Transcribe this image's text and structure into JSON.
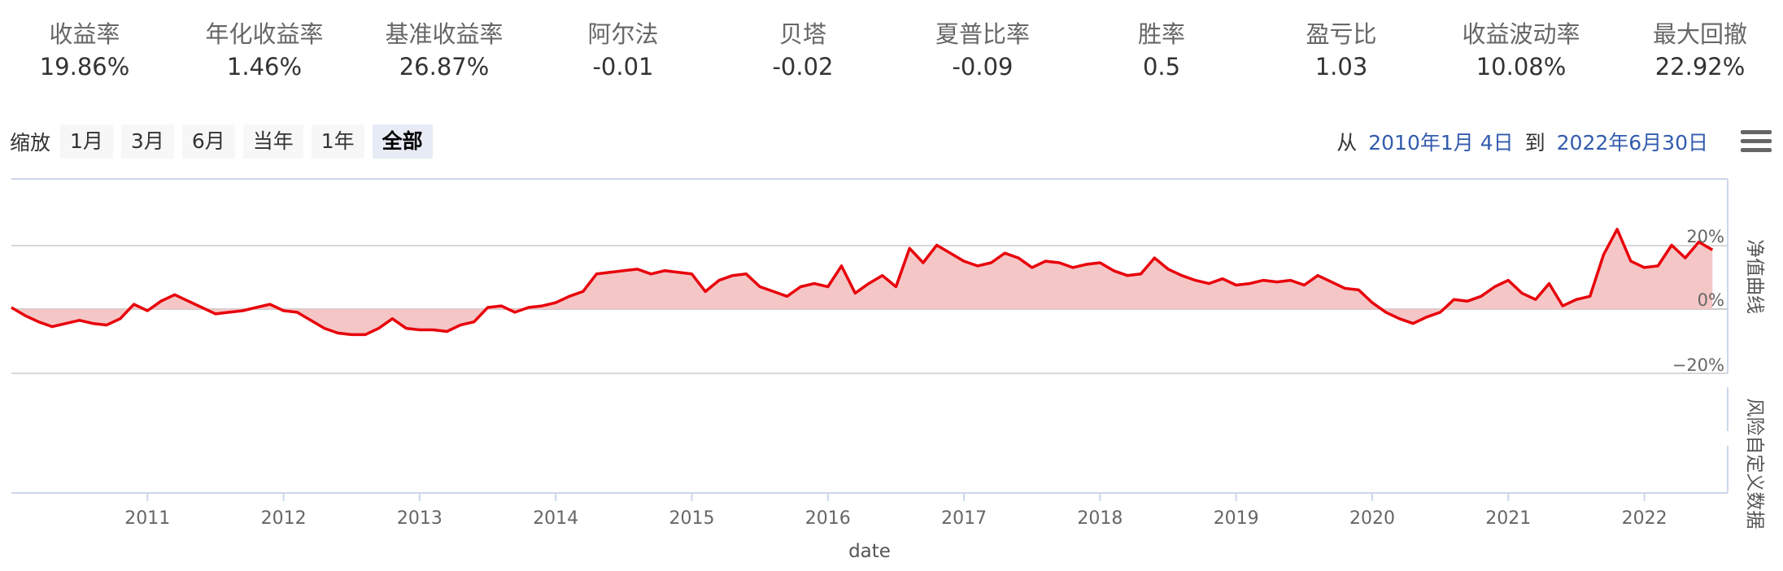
{
  "metrics": [
    {
      "label": "收益率",
      "value": "19.86%"
    },
    {
      "label": "年化收益率",
      "value": "1.46%"
    },
    {
      "label": "基准收益率",
      "value": "26.87%"
    },
    {
      "label": "阿尔法",
      "value": "-0.01"
    },
    {
      "label": "贝塔",
      "value": "-0.02"
    },
    {
      "label": "夏普比率",
      "value": "-0.09"
    },
    {
      "label": "胜率",
      "value": "0.5"
    },
    {
      "label": "盈亏比",
      "value": "1.03"
    },
    {
      "label": "收益波动率",
      "value": "10.08%"
    },
    {
      "label": "最大回撤",
      "value": "22.92%"
    }
  ],
  "zoom": {
    "label": "缩放",
    "buttons": [
      "1月",
      "3月",
      "6月",
      "当年",
      "1年",
      "全部"
    ],
    "active": "全部"
  },
  "range": {
    "from_label": "从",
    "from": "2010年1月 4日",
    "to_label": "到",
    "to": "2022年6月30日"
  },
  "colors": {
    "line": "#e8000b",
    "area": "#f5c6c6",
    "accent": "#335cad"
  },
  "chart_data": {
    "type": "area",
    "xlabel": "date",
    "x_ticks": [
      "2011",
      "2012",
      "2013",
      "2014",
      "2015",
      "2016",
      "2017",
      "2018",
      "2019",
      "2020",
      "2021",
      "2022"
    ],
    "panes": [
      {
        "title": "净值曲线",
        "y_ticks": [
          "20%",
          "0%",
          "−20%"
        ],
        "ylim": [
          -20,
          20
        ],
        "series": [
          {
            "x": [
              2010.0,
              2010.1,
              2010.2,
              2010.3,
              2010.4,
              2010.5,
              2010.6,
              2010.7,
              2010.8,
              2010.9,
              2011.0,
              2011.1,
              2011.2,
              2011.3,
              2011.4,
              2011.5,
              2011.6,
              2011.7,
              2011.8,
              2011.9,
              2012.0,
              2012.1,
              2012.2,
              2012.3,
              2012.4,
              2012.5,
              2012.6,
              2012.7,
              2012.8,
              2012.9,
              2013.0,
              2013.1,
              2013.2,
              2013.3,
              2013.4,
              2013.5,
              2013.6,
              2013.7,
              2013.8,
              2013.9,
              2014.0,
              2014.1,
              2014.2,
              2014.3,
              2014.4,
              2014.5,
              2014.6,
              2014.7,
              2014.8,
              2014.9,
              2015.0,
              2015.1,
              2015.2,
              2015.3,
              2015.4,
              2015.5,
              2015.6,
              2015.7,
              2015.8,
              2015.9,
              2016.0,
              2016.1,
              2016.2,
              2016.3,
              2016.4,
              2016.5,
              2016.6,
              2016.7,
              2016.8,
              2016.9,
              2017.0,
              2017.1,
              2017.2,
              2017.3,
              2017.4,
              2017.5,
              2017.6,
              2017.7,
              2017.8,
              2017.9,
              2018.0,
              2018.1,
              2018.2,
              2018.3,
              2018.4,
              2018.5,
              2018.6,
              2018.7,
              2018.8,
              2018.9,
              2019.0,
              2019.1,
              2019.2,
              2019.3,
              2019.4,
              2019.5,
              2019.6,
              2019.7,
              2019.8,
              2019.9,
              2020.0,
              2020.1,
              2020.2,
              2020.3,
              2020.4,
              2020.5,
              2020.6,
              2020.7,
              2020.8,
              2020.9,
              2021.0,
              2021.1,
              2021.2,
              2021.3,
              2021.4,
              2021.5,
              2021.6,
              2021.7,
              2021.8,
              2021.9,
              2022.0,
              2022.1,
              2022.2,
              2022.3,
              2022.4,
              2022.5
            ],
            "y": [
              0.5,
              -2.0,
              -4.0,
              -5.5,
              -4.5,
              -3.5,
              -4.5,
              -5.0,
              -3.0,
              1.5,
              -0.5,
              2.5,
              4.5,
              2.5,
              0.5,
              -1.5,
              -1.0,
              -0.5,
              0.5,
              1.5,
              -0.5,
              -1.0,
              -3.5,
              -6.0,
              -7.5,
              -8.0,
              -8.0,
              -6.0,
              -3.0,
              -6.0,
              -6.5,
              -6.5,
              -7.0,
              -5.0,
              -4.0,
              0.5,
              1.0,
              -1.0,
              0.5,
              1.0,
              2.0,
              4.0,
              5.5,
              11.0,
              11.5,
              12.0,
              12.5,
              11.0,
              12.0,
              11.5,
              11.0,
              5.5,
              9.0,
              10.5,
              11.0,
              7.0,
              5.5,
              4.0,
              7.0,
              8.0,
              7.0,
              13.5,
              5.0,
              8.0,
              10.5,
              7.0,
              19.0,
              14.5,
              20.0,
              17.5,
              15.0,
              13.5,
              14.5,
              17.5,
              16.0,
              13.0,
              15.0,
              14.5,
              13.0,
              14.0,
              14.5,
              12.0,
              10.5,
              11.0,
              16.0,
              12.5,
              10.5,
              9.0,
              8.0,
              9.5,
              7.5,
              8.0,
              9.0,
              8.5,
              9.0,
              7.5,
              10.5,
              8.5,
              6.5,
              6.0,
              2.0,
              -1.0,
              -3.0,
              -4.5,
              -2.5,
              -1.0,
              3.0,
              2.5,
              4.0,
              7.0,
              9.0,
              5.0,
              3.0,
              8.0,
              1.0,
              3.0,
              4.0,
              17.0,
              25.0,
              15.0,
              13.0,
              13.5,
              20.0,
              16.0,
              21.0,
              18.5
            ]
          }
        ]
      },
      {
        "title": "风险自定义数据",
        "y_ticks": []
      }
    ]
  }
}
